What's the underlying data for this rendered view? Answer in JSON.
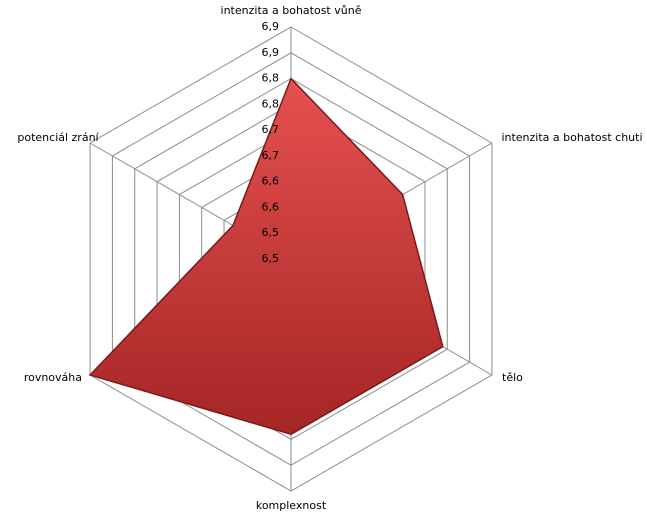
{
  "chart_data": {
    "type": "radar",
    "categories": [
      "intenzita a bohatost vůně",
      "intenzita a bohatost chuti",
      "tělo",
      "komplexnost",
      "rovnováha",
      "potenciál zrání"
    ],
    "series": [
      {
        "color": "#c83232",
        "values": [
          6.8,
          6.7,
          6.79,
          6.79,
          6.9,
          6.58
        ]
      }
    ],
    "ylim": [
      6.45,
      6.9
    ],
    "yticks": [
      {
        "value": 6.45,
        "label": "6,5"
      },
      {
        "value": 6.5,
        "label": "6,5"
      },
      {
        "value": 6.55,
        "label": "6,6"
      },
      {
        "value": 6.6,
        "label": "6,6"
      },
      {
        "value": 6.65,
        "label": "6,7"
      },
      {
        "value": 6.7,
        "label": "6,7"
      },
      {
        "value": 6.75,
        "label": "6,8"
      },
      {
        "value": 6.8,
        "label": "6,8"
      },
      {
        "value": 6.85,
        "label": "6,9"
      },
      {
        "value": 6.9,
        "label": "6,9"
      }
    ],
    "grid": true
  }
}
